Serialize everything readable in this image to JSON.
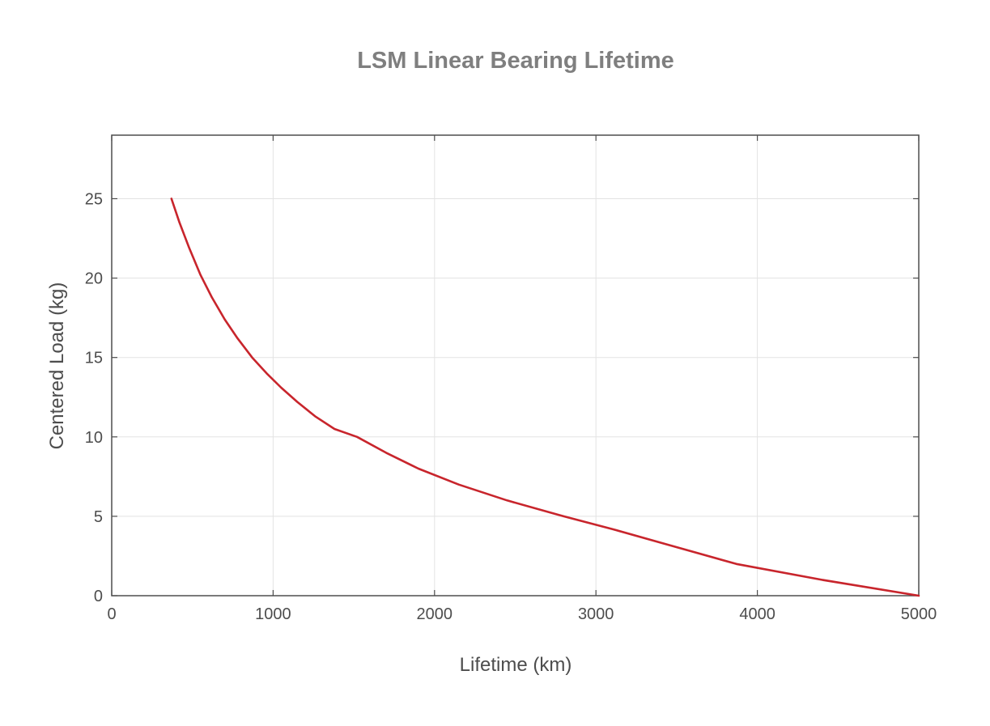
{
  "chart_data": {
    "type": "line",
    "title": "LSM Linear Bearing Lifetime",
    "xlabel": "Lifetime (km)",
    "ylabel": "Centered Load (kg)",
    "xlim": [
      0,
      5000
    ],
    "ylim": [
      0,
      29
    ],
    "xticks": [
      0,
      1000,
      2000,
      3000,
      4000,
      5000
    ],
    "yticks": [
      0,
      5,
      10,
      15,
      20,
      25
    ],
    "xtick_labels": [
      "0",
      "1000",
      "2000",
      "3000",
      "4000",
      "5000"
    ],
    "ytick_labels": [
      "0",
      "5",
      "10",
      "15",
      "20",
      "25"
    ],
    "grid": true,
    "series": [
      {
        "color": "#c8252c",
        "x": [
          370,
          420,
          480,
          550,
          620,
          700,
          780,
          870,
          960,
          1050,
          1150,
          1260,
          1380,
          1520,
          1700,
          1900,
          2150,
          2450,
          2800,
          3100,
          3450,
          3870,
          4400,
          5000
        ],
        "y": [
          25,
          23.5,
          21.9,
          20.2,
          18.8,
          17.4,
          16.2,
          15.0,
          14.0,
          13.1,
          12.2,
          11.3,
          10.5,
          10.0,
          9.0,
          8.0,
          7.0,
          6.0,
          5.0,
          4.2,
          3.2,
          2.0,
          1.0,
          0
        ]
      }
    ]
  }
}
